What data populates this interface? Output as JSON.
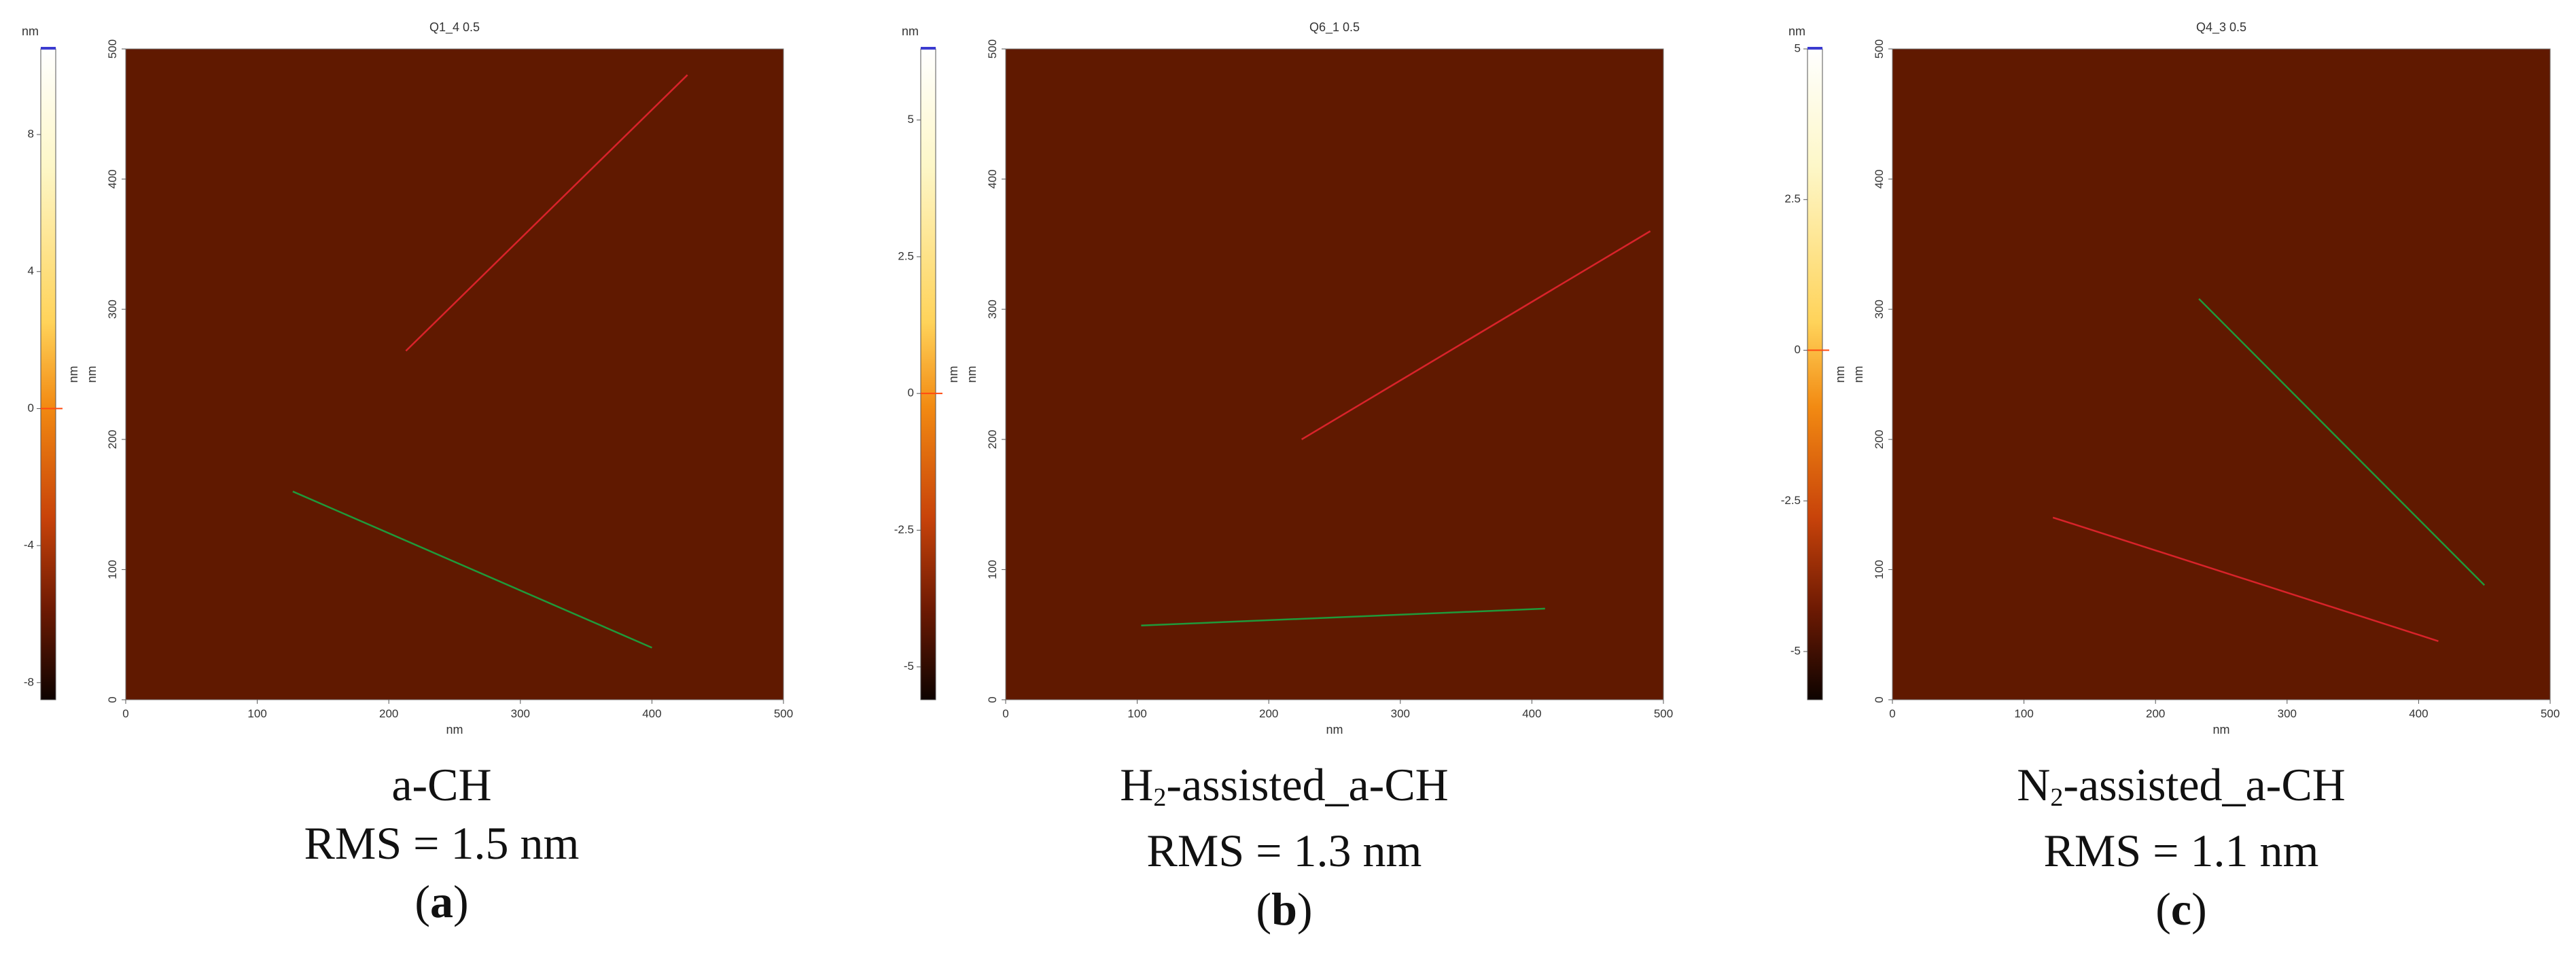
{
  "chart_data": [
    {
      "type": "heatmap",
      "id": "a",
      "title": "Q1_4 0.5",
      "colorbar_unit": "nm",
      "colorbar_ticks": [
        8,
        4,
        0,
        -4,
        -8
      ],
      "colorbar_range": [
        -8.5,
        10.5
      ],
      "colorbar_label": "nm",
      "xlabel": "nm",
      "ylabel": "nm",
      "x_ticks": [
        0,
        100,
        200,
        300,
        400,
        500
      ],
      "y_ticks": [
        0,
        100,
        200,
        300,
        400,
        500
      ],
      "xlim": [
        0,
        500
      ],
      "ylim": [
        0,
        500
      ],
      "profile_lines": [
        {
          "color": "red",
          "x1": 213,
          "y1": 268,
          "x2": 427,
          "y2": 480
        },
        {
          "color": "green",
          "x1": 127,
          "y1": 160,
          "x2": 400,
          "y2": 40
        }
      ],
      "caption": {
        "material": "a-CH",
        "rms": "RMS = 1.5 nm",
        "letter": "a"
      }
    },
    {
      "type": "heatmap",
      "id": "b",
      "title": "Q6_1 0.5",
      "colorbar_unit": "nm",
      "colorbar_ticks": [
        5,
        2.5,
        0,
        -2.5,
        -5
      ],
      "colorbar_range": [
        -5.6,
        6.3
      ],
      "colorbar_label": "nm",
      "xlabel": "nm",
      "ylabel": "nm",
      "x_ticks": [
        0,
        100,
        200,
        300,
        400,
        500
      ],
      "y_ticks": [
        0,
        100,
        200,
        300,
        400,
        500
      ],
      "xlim": [
        0,
        500
      ],
      "ylim": [
        0,
        500
      ],
      "profile_lines": [
        {
          "color": "red",
          "x1": 225,
          "y1": 200,
          "x2": 490,
          "y2": 360
        },
        {
          "color": "green",
          "x1": 103,
          "y1": 57,
          "x2": 410,
          "y2": 70
        }
      ],
      "caption": {
        "material_prefix": "H",
        "material_sub": "2",
        "material_suffix": "-assisted_a-CH",
        "rms": "RMS = 1.3 nm",
        "letter": "b"
      }
    },
    {
      "type": "heatmap",
      "id": "c",
      "title": "Q4_3 0.5",
      "colorbar_unit": "nm",
      "colorbar_ticks": [
        5,
        2.5,
        0,
        -2.5,
        -5
      ],
      "colorbar_range": [
        -5.8,
        5.0
      ],
      "colorbar_label": "nm",
      "xlabel": "nm",
      "ylabel": "nm",
      "x_ticks": [
        0,
        100,
        200,
        300,
        400,
        500
      ],
      "y_ticks": [
        0,
        100,
        200,
        300,
        400,
        500
      ],
      "xlim": [
        0,
        500
      ],
      "ylim": [
        0,
        500
      ],
      "profile_lines": [
        {
          "color": "green",
          "x1": 233,
          "y1": 308,
          "x2": 450,
          "y2": 88
        },
        {
          "color": "red",
          "x1": 122,
          "y1": 140,
          "x2": 415,
          "y2": 45
        }
      ],
      "caption": {
        "material_prefix": "N",
        "material_sub": "2",
        "material_suffix": "-assisted_a-CH",
        "rms": "RMS = 1.1 nm",
        "letter": "c"
      }
    }
  ],
  "colors": {
    "afm_dark": "#7a2600",
    "afm_mid": "#e0700e",
    "afm_light": "#ffe7a0",
    "profile_red": "#d8232a",
    "profile_green": "#1f9a3a"
  }
}
